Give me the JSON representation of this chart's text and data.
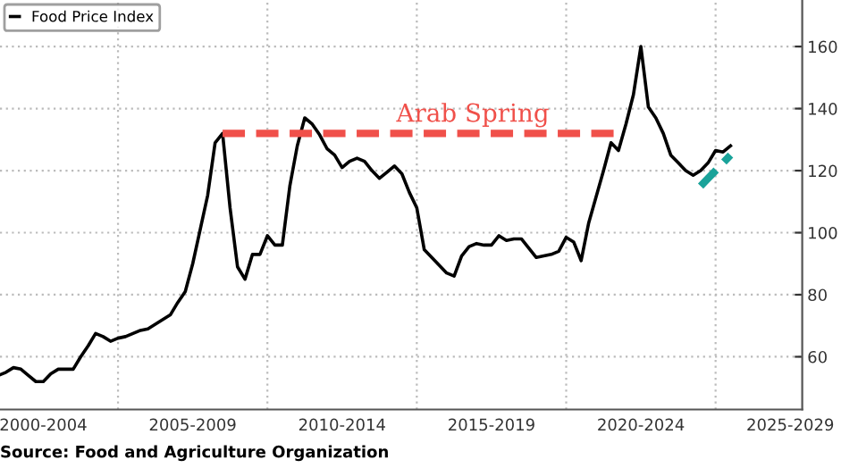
{
  "chart_data": {
    "type": "line",
    "legend": "top left",
    "grid": true,
    "line_style": "solid",
    "marker": "none",
    "categories": [
      null,
      null,
      null,
      null,
      null,
      null,
      "2000-2004",
      null,
      null,
      null,
      null,
      null,
      null,
      null,
      null,
      null,
      null,
      null,
      null,
      null,
      null,
      null,
      null,
      null,
      null,
      null,
      "2005-2009",
      null,
      null,
      null,
      null,
      null,
      null,
      null,
      null,
      null,
      null,
      null,
      null,
      null,
      null,
      null,
      null,
      null,
      null,
      null,
      "2010-2014",
      null,
      null,
      null,
      null,
      null,
      null,
      null,
      null,
      null,
      null,
      null,
      null,
      null,
      null,
      null,
      null,
      null,
      null,
      null,
      "2015-2019",
      null,
      null,
      null,
      null,
      null,
      null,
      null,
      null,
      null,
      null,
      null,
      null,
      null,
      null,
      null,
      null,
      null,
      null,
      null,
      "2020-2024",
      null,
      null,
      null,
      null,
      null,
      null,
      null,
      null,
      null,
      null,
      null,
      null,
      null,
      null,
      null,
      null,
      null,
      null,
      null,
      "2025-2029",
      null
    ],
    "ylim": [
      43,
      175
    ],
    "yticks": [
      60,
      80,
      100,
      120,
      140,
      160
    ],
    "annotations": [
      {
        "text": "Arab Spring",
        "y": 132
      },
      "Source: Food and Agriculture Organization"
    ],
    "series": [
      {
        "name": "Food Price Index",
        "color": "#000000",
        "values": [
          54,
          55,
          56.5,
          56,
          54,
          52,
          52,
          54.5,
          56,
          56,
          56,
          60,
          63.5,
          67.5,
          66.5,
          65,
          66,
          66.5,
          67.5,
          68.5,
          69,
          70.5,
          72,
          73.5,
          77.5,
          81,
          90,
          101,
          112,
          129,
          132,
          108,
          89,
          85,
          93,
          93,
          99,
          96,
          96,
          115,
          128,
          137,
          135,
          131.5,
          127,
          125,
          121,
          123,
          124,
          123,
          120,
          117.5,
          119.5,
          121.5,
          119,
          113,
          108,
          94.5,
          92,
          89.5,
          87,
          86,
          92.5,
          95.5,
          96.5,
          96,
          96,
          99,
          97.5,
          98,
          98,
          95,
          92,
          92.5,
          93,
          94,
          98.5,
          97,
          91,
          103,
          111.5,
          120,
          129,
          126.5,
          135,
          144.5,
          160,
          140.5,
          137,
          132,
          125,
          122.5,
          120,
          118.5,
          120,
          122.5,
          126.5,
          126,
          128,
          null,
          null,
          null,
          null,
          null,
          null,
          null,
          null,
          null
        ]
      },
      {
        "color": "#f0504a",
        "line_style": "dashed",
        "values": [
          null,
          null,
          null,
          null,
          null,
          null,
          null,
          null,
          null,
          null,
          null,
          null,
          null,
          null,
          null,
          null,
          null,
          null,
          null,
          null,
          null,
          null,
          null,
          null,
          null,
          null,
          null,
          null,
          null,
          null,
          132,
          132,
          132,
          132,
          132,
          132,
          132,
          132,
          132,
          132,
          132,
          132,
          132,
          132,
          132,
          132,
          132,
          132,
          132,
          132,
          132,
          132,
          132,
          132,
          132,
          132,
          132,
          132,
          132,
          132,
          132,
          132,
          132,
          132,
          132,
          132,
          132,
          132,
          132,
          132,
          132,
          132,
          132,
          132,
          132,
          132,
          132,
          132,
          132,
          132,
          132,
          132,
          132,
          132,
          null,
          null,
          null,
          null,
          null,
          null,
          null,
          null,
          null,
          null,
          null,
          null,
          null,
          null,
          null,
          null,
          null,
          null,
          null,
          null,
          null,
          null,
          null,
          null
        ]
      },
      {
        "color": "#1aa39a",
        "line_style": "dashed",
        "values": [
          null,
          null,
          null,
          null,
          null,
          null,
          null,
          null,
          null,
          null,
          null,
          null,
          null,
          null,
          null,
          null,
          null,
          null,
          null,
          null,
          null,
          null,
          null,
          null,
          null,
          null,
          null,
          null,
          null,
          null,
          null,
          null,
          null,
          null,
          null,
          null,
          null,
          null,
          null,
          null,
          null,
          null,
          null,
          null,
          null,
          null,
          null,
          null,
          null,
          null,
          null,
          null,
          null,
          null,
          null,
          null,
          null,
          null,
          null,
          null,
          null,
          null,
          null,
          null,
          null,
          null,
          null,
          null,
          null,
          null,
          null,
          null,
          null,
          null,
          null,
          null,
          null,
          null,
          null,
          null,
          null,
          null,
          null,
          null,
          null,
          null,
          null,
          null,
          null,
          null,
          null,
          null,
          null,
          null,
          115,
          117.5,
          120,
          122.5,
          125,
          null,
          null,
          null,
          null,
          null,
          null,
          null,
          null,
          null
        ]
      }
    ]
  }
}
